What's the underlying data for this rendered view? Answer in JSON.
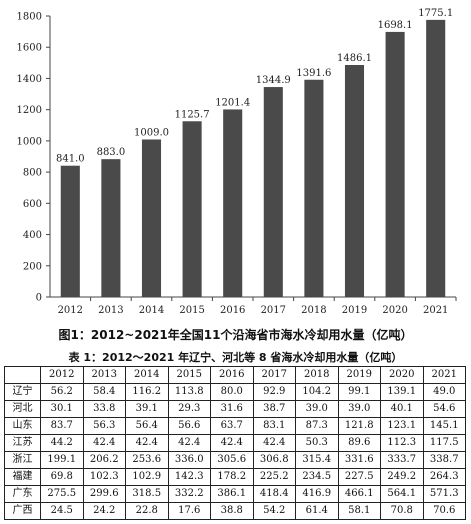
{
  "chart_data": [
    {
      "type": "bar",
      "categories": [
        "2012",
        "2013",
        "2014",
        "2015",
        "2016",
        "2017",
        "2018",
        "2019",
        "2020",
        "2021"
      ],
      "values": [
        841.0,
        883.0,
        1009.0,
        1125.7,
        1201.4,
        1344.9,
        1391.6,
        1486.1,
        1698.1,
        1775.1
      ],
      "value_labels": [
        "841.0",
        "883.0",
        "1009.0",
        "1125.7",
        "1201.4",
        "1344.9",
        "1391.6",
        "1486.1",
        "1698.1",
        "1775.1"
      ],
      "yticks": [
        "0",
        "200",
        "400",
        "600",
        "800",
        "1000",
        "1200",
        "1400",
        "1600",
        "1800"
      ],
      "ylim": [
        0,
        1800
      ],
      "bar_color": "#4a4a4a",
      "grid": false,
      "title": "图1：2012~2021年全国11个沿海省市海水冷却用水量（亿吨）"
    },
    {
      "type": "table",
      "title": "表 1：2012～2021 年辽宁、河北等 8 省海水冷却用水量（亿吨）",
      "columns": [
        "",
        "2012",
        "2013",
        "2014",
        "2015",
        "2016",
        "2017",
        "2018",
        "2019",
        "2020",
        "2021"
      ],
      "rows": [
        {
          "name": "辽宁",
          "values": [
            "56.2",
            "58.4",
            "116.2",
            "113.8",
            "80.0",
            "92.9",
            "104.2",
            "99.1",
            "139.1",
            "49.0"
          ]
        },
        {
          "name": "河北",
          "values": [
            "30.1",
            "33.8",
            "39.1",
            "29.3",
            "31.6",
            "38.7",
            "39.0",
            "39.0",
            "40.1",
            "54.6"
          ]
        },
        {
          "name": "山东",
          "values": [
            "83.7",
            "56.3",
            "56.4",
            "56.6",
            "63.7",
            "83.1",
            "87.3",
            "121.8",
            "123.1",
            "145.1"
          ]
        },
        {
          "name": "江苏",
          "values": [
            "44.2",
            "42.4",
            "42.4",
            "42.4",
            "42.4",
            "42.4",
            "50.3",
            "89.6",
            "112.3",
            "117.5"
          ]
        },
        {
          "name": "浙江",
          "values": [
            "199.1",
            "206.2",
            "253.6",
            "336.0",
            "305.6",
            "306.8",
            "315.4",
            "331.6",
            "333.7",
            "338.7"
          ]
        },
        {
          "name": "福建",
          "values": [
            "69.8",
            "102.3",
            "102.9",
            "142.3",
            "178.2",
            "225.2",
            "234.5",
            "227.5",
            "249.2",
            "264.3"
          ]
        },
        {
          "name": "广东",
          "values": [
            "275.5",
            "299.6",
            "318.5",
            "332.2",
            "386.1",
            "418.4",
            "416.9",
            "466.1",
            "564.1",
            "571.3"
          ]
        },
        {
          "name": "广西",
          "values": [
            "24.5",
            "24.2",
            "22.8",
            "17.6",
            "38.8",
            "54.2",
            "61.4",
            "58.1",
            "70.8",
            "70.6"
          ]
        }
      ]
    }
  ]
}
